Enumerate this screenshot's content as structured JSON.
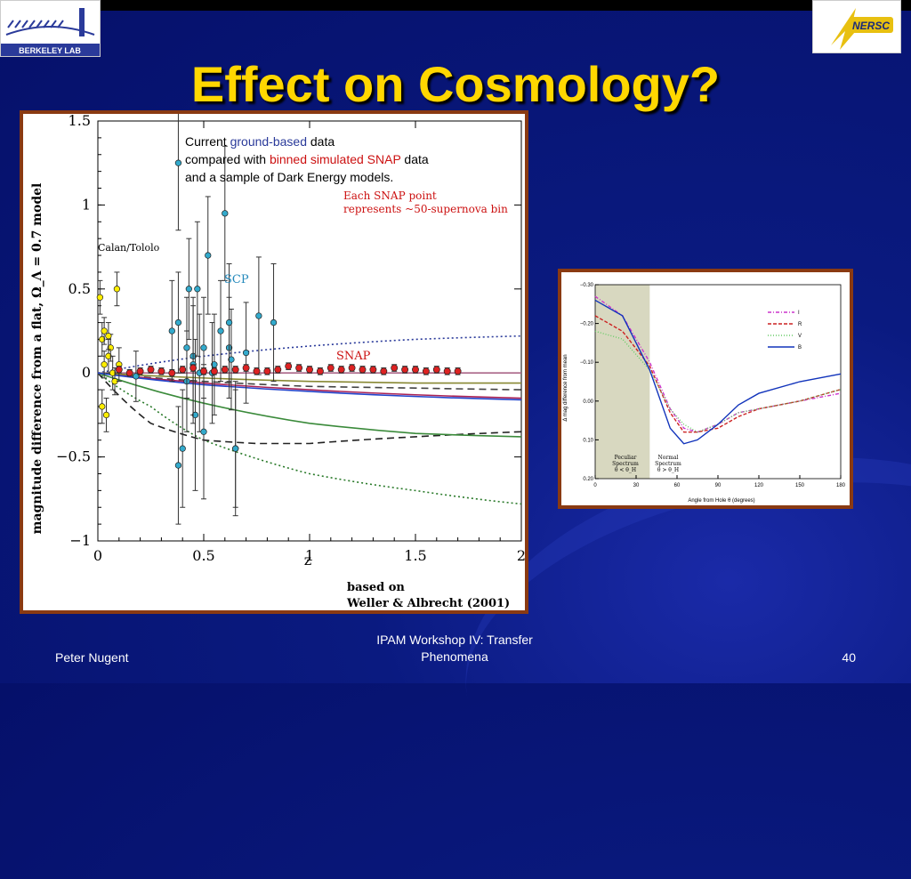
{
  "slide": {
    "title": "Effect on Cosmology?",
    "footer_left": "Peter Nugent",
    "footer_center_line1": "IPAM Workshop IV: Transfer",
    "footer_center_line2": "Phenomena",
    "footer_right": "40"
  },
  "logos": {
    "left_text": "BERKELEY LAB",
    "right_text": "NERSC"
  },
  "colors": {
    "background": "#0a1a80",
    "title": "#ffd700",
    "frame": "#8a3a12"
  },
  "chart_data": [
    {
      "type": "scatter",
      "xlabel": "z",
      "ylabel": "magnitude difference from a flat, Ω_Λ = 0.7 model",
      "xlim": [
        0,
        2
      ],
      "ylim": [
        -1,
        1.5
      ],
      "xticks": [
        "0",
        "0.5",
        "1",
        "1.5",
        "2"
      ],
      "yticks": [
        "−1",
        "−0.5",
        "0",
        "0.5",
        "1",
        "1.5"
      ],
      "annotations": {
        "line1a": "Current ",
        "line1b": "ground-based",
        "line1c": " data",
        "line2a": "compared with ",
        "line2b": "binned simulated SNAP",
        "line2c": " data",
        "line3": "and a sample of Dark Energy models.",
        "snap_note1": "Each SNAP point",
        "snap_note2": "represents ~50-supernova bin",
        "calan": "Calan/Tololo",
        "scp": "SCP",
        "snap": "SNAP",
        "based1": "based on",
        "based2": "Weller & Albrecht (2001)"
      },
      "series": [
        {
          "name": "Calan/Tololo",
          "color": "#ffee00",
          "x": [
            0.01,
            0.02,
            0.03,
            0.04,
            0.05,
            0.06,
            0.07,
            0.08,
            0.09,
            0.1,
            0.02,
            0.05,
            0.03
          ],
          "y": [
            0.45,
            0.2,
            0.05,
            -0.25,
            0.1,
            0.15,
            0.0,
            -0.05,
            0.5,
            0.05,
            -0.2,
            0.22,
            0.25
          ],
          "err": [
            0.1,
            0.1,
            0.08,
            0.1,
            0.1,
            0.08,
            0.1,
            0.08,
            0.1,
            0.1,
            0.1,
            0.08,
            0.08
          ]
        },
        {
          "name": "SCP",
          "color": "#33aacc",
          "x": [
            0.18,
            0.35,
            0.38,
            0.38,
            0.4,
            0.42,
            0.43,
            0.45,
            0.46,
            0.47,
            0.48,
            0.5,
            0.52,
            0.55,
            0.58,
            0.6,
            0.62,
            0.63,
            0.65,
            0.7,
            0.76,
            0.83,
            0.45,
            0.5,
            0.62,
            0.65,
            0.38,
            0.42,
            0.54
          ],
          "y": [
            -0.02,
            0.25,
            1.25,
            0.3,
            -0.45,
            -0.05,
            0.5,
            0.1,
            -0.25,
            0.5,
            0.0,
            0.15,
            0.7,
            0.05,
            0.25,
            0.95,
            0.15,
            0.08,
            -0.45,
            0.12,
            0.34,
            0.3,
            0.05,
            -0.35,
            0.3,
            -0.45,
            -0.55,
            0.15,
            0.0
          ],
          "err": [
            0.15,
            0.3,
            0.4,
            0.3,
            0.35,
            0.3,
            0.3,
            0.35,
            0.45,
            0.4,
            0.35,
            0.3,
            0.35,
            0.3,
            0.3,
            0.4,
            0.3,
            0.3,
            0.35,
            0.3,
            0.35,
            0.35,
            0.35,
            0.4,
            0.35,
            0.4,
            0.35,
            0.3,
            0.3
          ]
        },
        {
          "name": "SNAP",
          "color": "#dd2222",
          "x": [
            0.1,
            0.15,
            0.2,
            0.25,
            0.3,
            0.35,
            0.4,
            0.45,
            0.5,
            0.55,
            0.6,
            0.65,
            0.7,
            0.75,
            0.8,
            0.85,
            0.9,
            0.95,
            1.0,
            1.05,
            1.1,
            1.15,
            1.2,
            1.25,
            1.3,
            1.35,
            1.4,
            1.45,
            1.5,
            1.55,
            1.6,
            1.65,
            1.7
          ],
          "y": [
            0.02,
            0.0,
            0.01,
            0.02,
            0.01,
            0.0,
            0.02,
            0.03,
            0.01,
            0.01,
            0.02,
            0.02,
            0.03,
            0.01,
            0.01,
            0.02,
            0.04,
            0.03,
            0.02,
            0.01,
            0.03,
            0.02,
            0.03,
            0.02,
            0.02,
            0.01,
            0.03,
            0.02,
            0.02,
            0.01,
            0.02,
            0.01,
            0.01
          ],
          "err": [
            0.02,
            0.02,
            0.02,
            0.02,
            0.02,
            0.02,
            0.02,
            0.02,
            0.02,
            0.02,
            0.02,
            0.02,
            0.02,
            0.02,
            0.02,
            0.02,
            0.02,
            0.02,
            0.02,
            0.02,
            0.02,
            0.02,
            0.02,
            0.02,
            0.02,
            0.02,
            0.02,
            0.02,
            0.02,
            0.02,
            0.02,
            0.02,
            0.02
          ]
        }
      ],
      "models": [
        {
          "color": "#2a3a9a",
          "dash": "2,3",
          "x": [
            0,
            0.5,
            1,
            1.5,
            2
          ],
          "y": [
            0,
            0.1,
            0.16,
            0.2,
            0.22
          ]
        },
        {
          "color": "#2a7a2a",
          "dash": "2,3",
          "x": [
            0,
            0.25,
            0.5,
            1,
            1.5,
            2
          ],
          "y": [
            0,
            -0.2,
            -0.4,
            -0.6,
            -0.7,
            -0.78
          ]
        },
        {
          "color": "#222222",
          "dash": "8,5",
          "x": [
            0,
            0.25,
            0.5,
            0.75,
            1,
            1.5,
            2
          ],
          "y": [
            0,
            -0.3,
            -0.4,
            -0.42,
            -0.42,
            -0.38,
            -0.35
          ]
        },
        {
          "color": "#3a8a3a",
          "dash": "",
          "x": [
            0,
            0.5,
            1,
            1.5,
            2
          ],
          "y": [
            0,
            -0.18,
            -0.3,
            -0.36,
            -0.38
          ]
        },
        {
          "color": "#444444",
          "dash": "8,5",
          "x": [
            0,
            0.5,
            1,
            1.5,
            2
          ],
          "y": [
            0,
            -0.05,
            -0.08,
            -0.09,
            -0.1
          ]
        },
        {
          "color": "#aa2255",
          "dash": "",
          "x": [
            0,
            0.5,
            1,
            1.5,
            2
          ],
          "y": [
            0,
            -0.06,
            -0.1,
            -0.13,
            -0.15
          ]
        },
        {
          "color": "#aa6688",
          "dash": "",
          "x": [
            0,
            1,
            2
          ],
          "y": [
            0,
            0,
            0
          ]
        },
        {
          "color": "#888833",
          "dash": "",
          "x": [
            0,
            0.5,
            1,
            1.5,
            2
          ],
          "y": [
            0,
            -0.03,
            -0.05,
            -0.06,
            -0.06
          ]
        },
        {
          "color": "#2244cc",
          "dash": "",
          "x": [
            0,
            0.5,
            1,
            1.5,
            2
          ],
          "y": [
            0,
            -0.07,
            -0.11,
            -0.14,
            -0.16
          ]
        }
      ]
    },
    {
      "type": "line",
      "xlabel": "Angle from Hole θ (degrees)",
      "ylabel": "Δ mag difference from mean",
      "xlim": [
        0,
        180
      ],
      "ylim": [
        -0.3,
        0.2
      ],
      "xticks": [
        "0",
        "30",
        "60",
        "90",
        "120",
        "150",
        "180"
      ],
      "yticks": [
        "−0.30",
        "−0.20",
        "−0.10",
        "0.00",
        "0.10",
        "0.20"
      ],
      "shaded_region": [
        0,
        40
      ],
      "region_labels": {
        "left1": "Peculiar",
        "left2": "Spectrum",
        "left3": "θ < θ_H",
        "right1": "Normal",
        "right2": "Spectrum",
        "right3": "θ > θ_H"
      },
      "series": [
        {
          "name": "I",
          "color": "#cc33cc",
          "dash": "4,2,1,2",
          "x": [
            0,
            20,
            40,
            55,
            65,
            75,
            90,
            105,
            120,
            150,
            180
          ],
          "y": [
            -0.27,
            -0.22,
            -0.1,
            0.02,
            0.07,
            0.08,
            0.06,
            0.03,
            0.02,
            0.0,
            -0.02
          ]
        },
        {
          "name": "R",
          "color": "#cc2222",
          "dash": "4,2",
          "x": [
            0,
            20,
            40,
            55,
            65,
            75,
            90,
            105,
            120,
            150,
            180
          ],
          "y": [
            -0.22,
            -0.18,
            -0.09,
            0.03,
            0.08,
            0.08,
            0.07,
            0.04,
            0.02,
            0.0,
            -0.03
          ]
        },
        {
          "name": "V",
          "color": "#66cc66",
          "dash": "1,2",
          "x": [
            0,
            20,
            40,
            55,
            65,
            75,
            90,
            105,
            120,
            150,
            180
          ],
          "y": [
            -0.18,
            -0.16,
            -0.08,
            0.02,
            0.06,
            0.08,
            0.06,
            0.03,
            0.02,
            0.0,
            -0.03
          ]
        },
        {
          "name": "B",
          "color": "#1133bb",
          "dash": "",
          "x": [
            0,
            20,
            40,
            55,
            65,
            75,
            90,
            105,
            120,
            150,
            180
          ],
          "y": [
            -0.26,
            -0.22,
            -0.08,
            0.07,
            0.11,
            0.1,
            0.06,
            0.01,
            -0.02,
            -0.05,
            -0.07
          ]
        }
      ]
    }
  ]
}
